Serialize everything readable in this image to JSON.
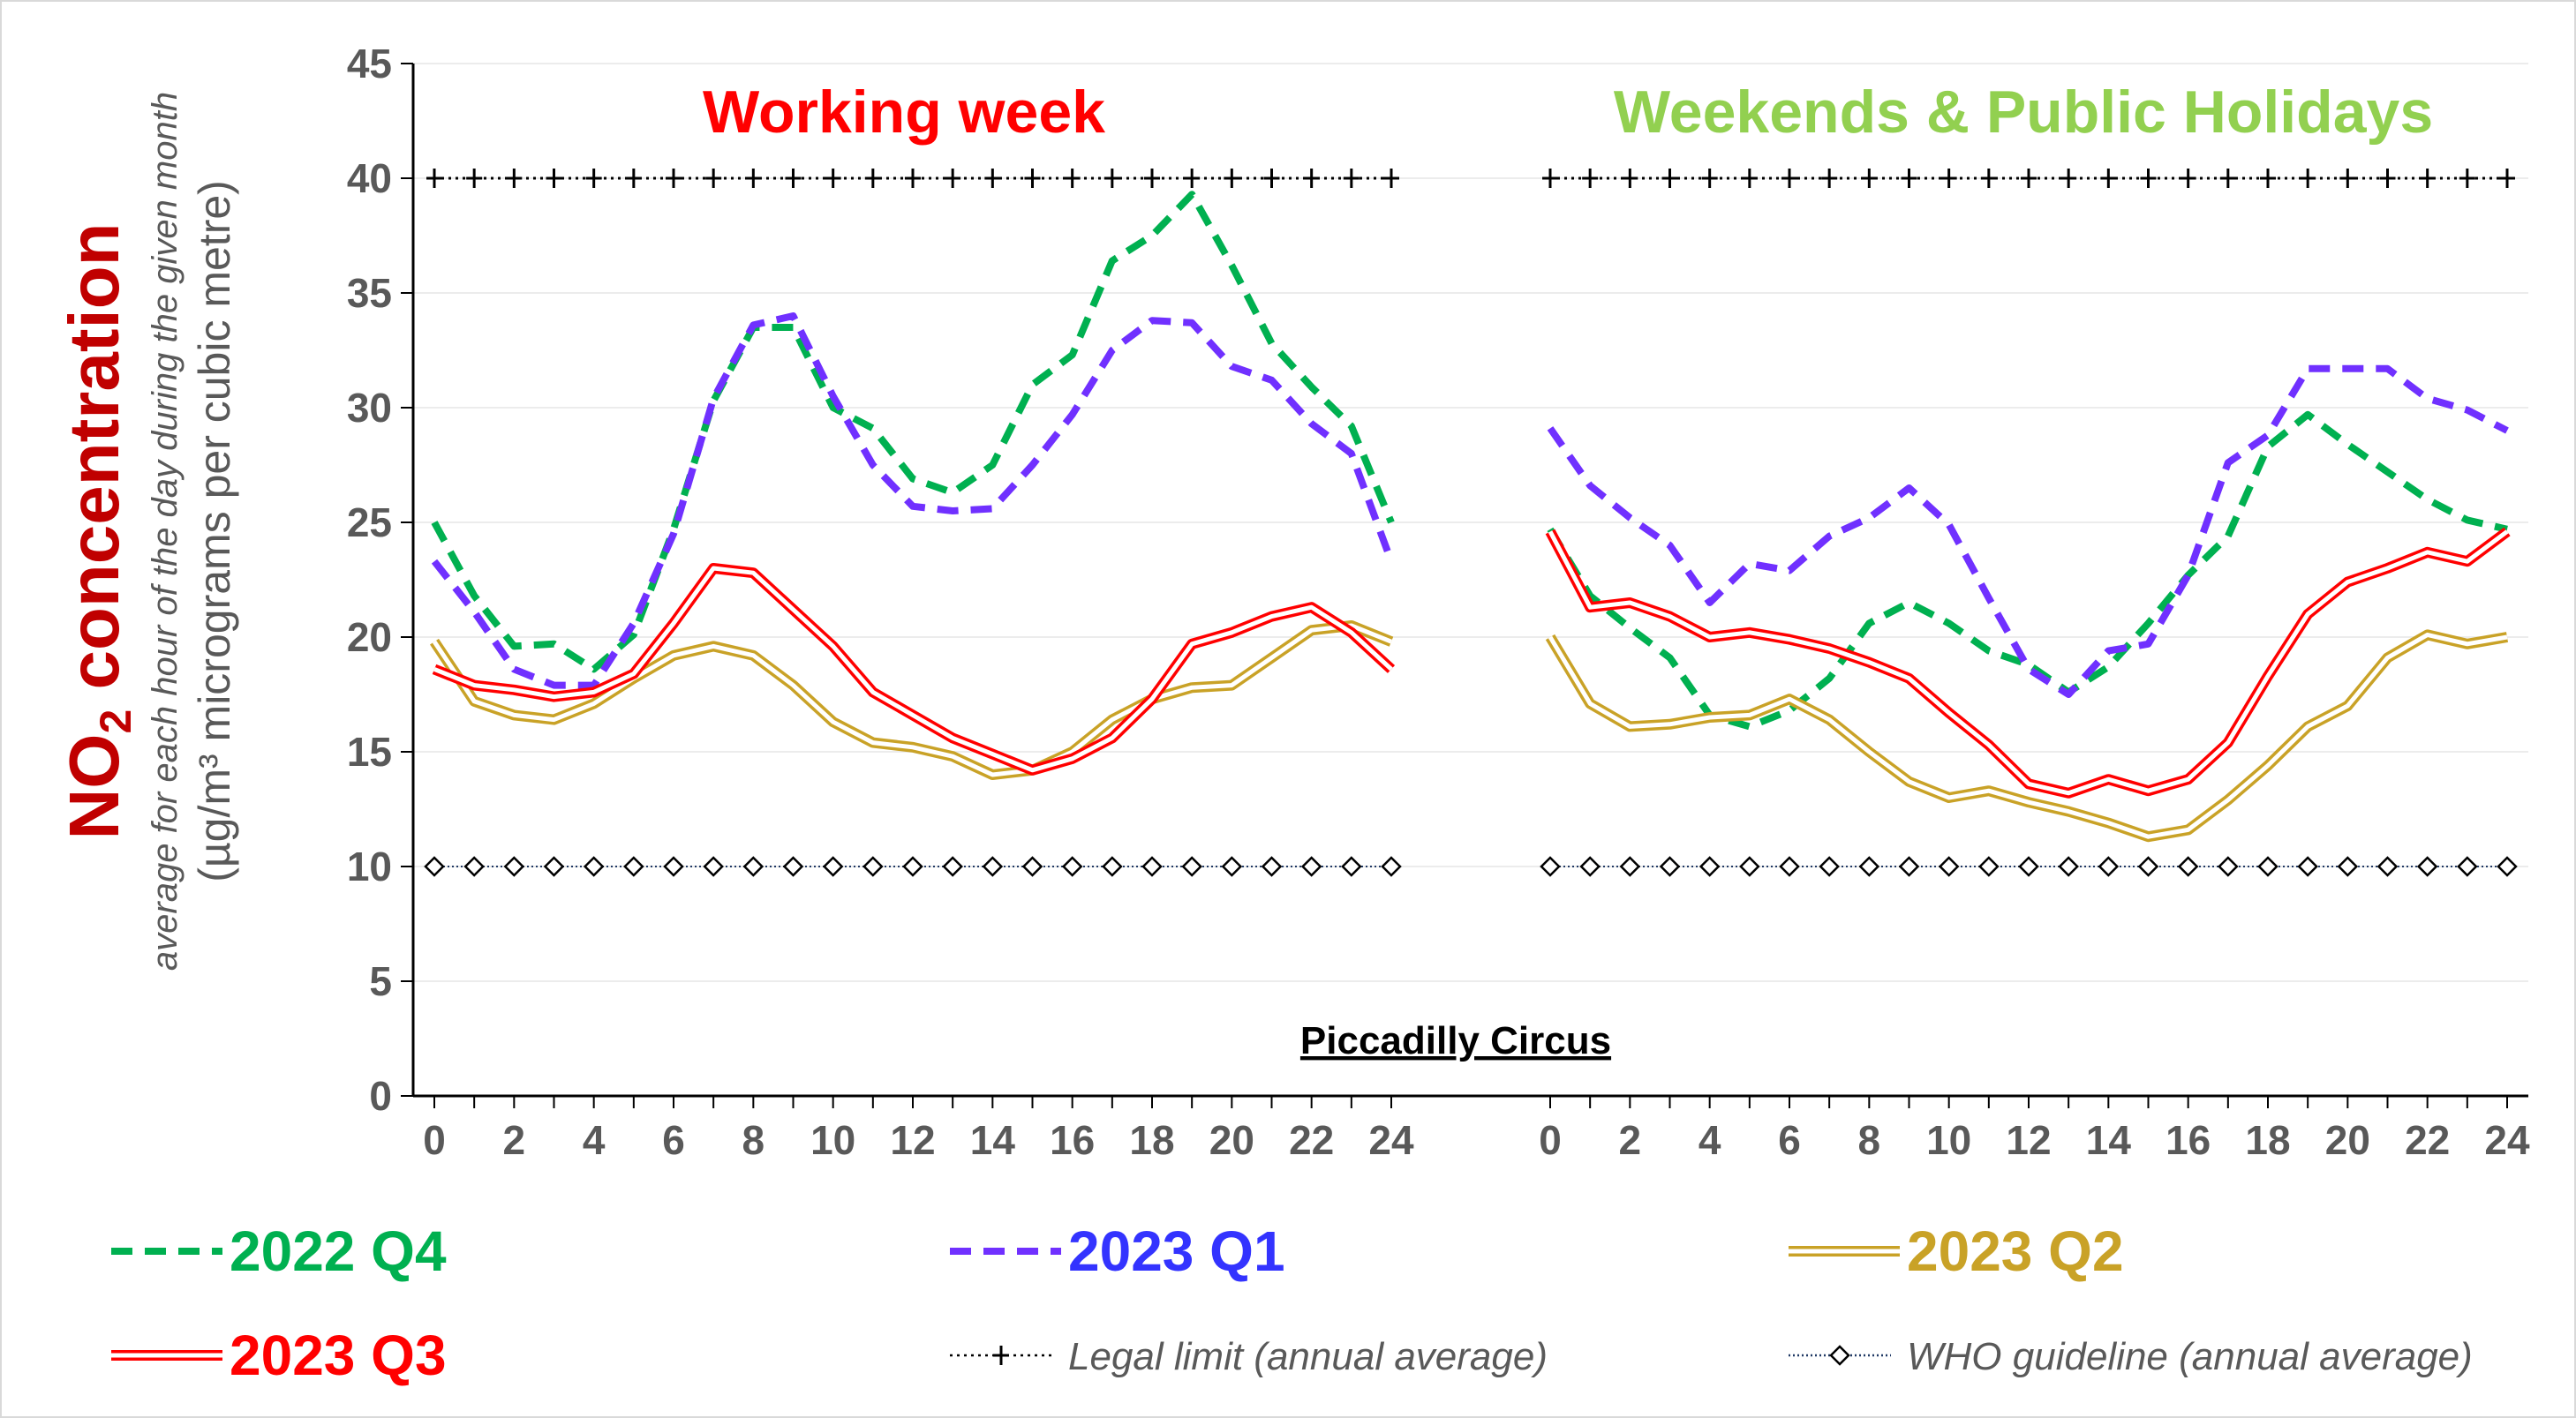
{
  "chart_data": {
    "type": "line",
    "site": "Piccadilly Circus",
    "y_axis": {
      "title_main": "NO",
      "title_main_sub": "2",
      "title_main_rest": " concentration",
      "title_sub": "average for each hour of the day during the given month",
      "title_unit": "(µg/m³ micrograms per cubic metre)",
      "ylim": [
        0,
        45
      ],
      "ticks": [
        "0",
        "5",
        "10",
        "15",
        "20",
        "25",
        "30",
        "35",
        "40",
        "45"
      ]
    },
    "x_ticks": [
      "0",
      "2",
      "4",
      "6",
      "8",
      "10",
      "12",
      "14",
      "16",
      "18",
      "20",
      "22",
      "24"
    ],
    "x": [
      0,
      1,
      2,
      3,
      4,
      5,
      6,
      7,
      8,
      9,
      10,
      11,
      12,
      13,
      14,
      15,
      16,
      17,
      18,
      19,
      20,
      21,
      22,
      23,
      24
    ],
    "panels": [
      {
        "title": "Working week",
        "title_color": "#ff0000",
        "series": [
          {
            "name": "2022 Q4",
            "style": "dashed",
            "color": "#00b050",
            "values": [
              25.0,
              21.8,
              19.6,
              19.7,
              18.6,
              20.1,
              24.7,
              30.3,
              33.5,
              33.5,
              30.0,
              29.1,
              26.9,
              26.3,
              27.5,
              31.0,
              32.3,
              36.4,
              37.5,
              39.3,
              36.2,
              32.8,
              30.9,
              29.2,
              25.0
            ]
          },
          {
            "name": "2023 Q1",
            "style": "dashed",
            "color": "#7030ff",
            "values": [
              23.3,
              21.1,
              18.6,
              17.9,
              17.9,
              20.6,
              24.5,
              30.4,
              33.6,
              34.0,
              30.5,
              27.5,
              25.7,
              25.5,
              25.6,
              27.5,
              29.7,
              32.5,
              33.8,
              33.7,
              31.8,
              31.2,
              29.3,
              28.0,
              23.3
            ]
          },
          {
            "name": "2023 Q2",
            "style": "double",
            "color": "#c9a227",
            "values": [
              19.8,
              17.2,
              16.6,
              16.4,
              17.1,
              18.2,
              19.2,
              19.6,
              19.2,
              17.9,
              16.3,
              15.4,
              15.2,
              14.8,
              14.0,
              14.2,
              15.0,
              16.4,
              17.3,
              17.8,
              17.9,
              19.1,
              20.3,
              20.5,
              19.8
            ]
          },
          {
            "name": "2023 Q3",
            "style": "double",
            "color": "#ff0000",
            "values": [
              18.6,
              17.9,
              17.7,
              17.4,
              17.6,
              18.4,
              20.6,
              23.0,
              22.8,
              21.2,
              19.6,
              17.6,
              16.6,
              15.6,
              14.9,
              14.2,
              14.7,
              15.6,
              17.3,
              19.7,
              20.2,
              20.9,
              21.3,
              20.2,
              18.6
            ]
          }
        ]
      },
      {
        "title": "Weekends & Public Holidays",
        "title_color": "#92d050",
        "series": [
          {
            "name": "2022 Q4",
            "style": "dashed",
            "color": "#00b050",
            "values": [
              24.7,
              21.8,
              20.4,
              19.1,
              16.6,
              16.1,
              16.8,
              18.2,
              20.6,
              21.5,
              20.6,
              19.4,
              18.8,
              17.6,
              18.7,
              20.6,
              22.7,
              24.4,
              28.3,
              29.7,
              28.4,
              27.2,
              26.0,
              25.1,
              24.7
            ]
          },
          {
            "name": "2023 Q1",
            "style": "dashed",
            "color": "#7030ff",
            "values": [
              29.1,
              26.6,
              25.2,
              24.0,
              21.5,
              23.2,
              22.9,
              24.4,
              25.2,
              26.5,
              24.9,
              21.7,
              18.6,
              17.5,
              19.4,
              19.7,
              22.7,
              27.6,
              28.8,
              31.7,
              31.7,
              31.7,
              30.4,
              29.9,
              29.0
            ]
          },
          {
            "name": "2023 Q2",
            "style": "double",
            "color": "#c9a227",
            "values": [
              20.0,
              17.1,
              16.1,
              16.2,
              16.5,
              16.6,
              17.3,
              16.4,
              15.0,
              13.7,
              13.0,
              13.3,
              12.8,
              12.4,
              11.9,
              11.3,
              11.6,
              12.9,
              14.4,
              16.1,
              17.0,
              19.1,
              20.1,
              19.7,
              20.0
            ]
          },
          {
            "name": "2023 Q3",
            "style": "double",
            "color": "#ff0000",
            "values": [
              24.6,
              21.3,
              21.5,
              20.9,
              20.0,
              20.2,
              19.9,
              19.5,
              18.9,
              18.2,
              16.7,
              15.3,
              13.6,
              13.2,
              13.8,
              13.3,
              13.8,
              15.4,
              18.3,
              21.0,
              22.4,
              23.0,
              23.7,
              23.3,
              24.6
            ]
          }
        ]
      }
    ],
    "reference_lines": [
      {
        "name": "Legal limit (annual average)",
        "value": 40,
        "marker": "plus",
        "color": "#000000"
      },
      {
        "name": "WHO guideline (annual average)",
        "value": 10,
        "marker": "diamond",
        "color": "#1f3864"
      }
    ],
    "legend": [
      {
        "label": "2022 Q4",
        "color": "#00b050",
        "style": "dashed"
      },
      {
        "label": "2023 Q1",
        "color": "#3333ff",
        "line_color": "#7030ff",
        "style": "dashed"
      },
      {
        "label": "2023 Q2",
        "color": "#c9a227",
        "style": "double"
      },
      {
        "label": "2023 Q3",
        "color": "#ff0000",
        "style": "double"
      }
    ],
    "grid": true,
    "legend_placement": "bottom"
  }
}
